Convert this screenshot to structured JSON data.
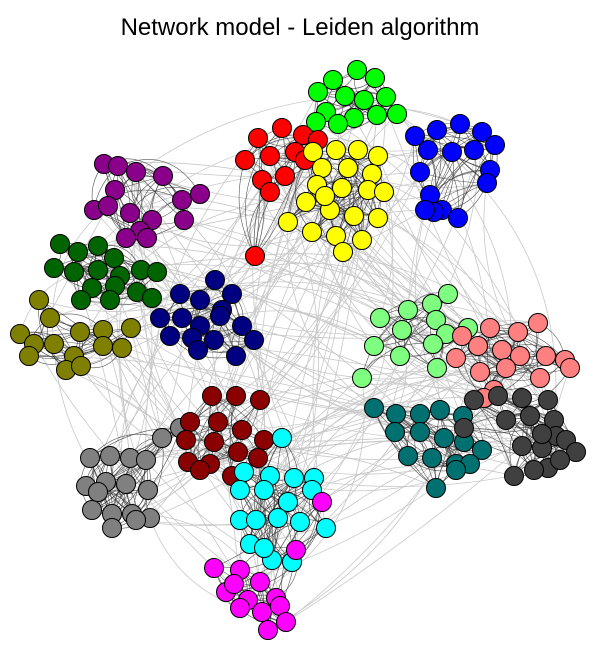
{
  "title": "Network model - Leiden algorithm",
  "chart": {
    "type": "network",
    "edge_colors": {
      "inter": "#c8c8c8",
      "intra": "#3a3a3a"
    },
    "node_stroke": "#000000",
    "communities": [
      {
        "name": "green",
        "color": "#00ff00"
      },
      {
        "name": "blue",
        "color": "#0000ff"
      },
      {
        "name": "red",
        "color": "#ff0000"
      },
      {
        "name": "yellow",
        "color": "#ffff00"
      },
      {
        "name": "purple",
        "color": "#8b008b"
      },
      {
        "name": "dark-green",
        "color": "#006400"
      },
      {
        "name": "olive",
        "color": "#808000"
      },
      {
        "name": "navy",
        "color": "#000080"
      },
      {
        "name": "light-green",
        "color": "#7fff7f"
      },
      {
        "name": "salmon",
        "color": "#ff8080"
      },
      {
        "name": "teal",
        "color": "#007070"
      },
      {
        "name": "dark-gray",
        "color": "#404040"
      },
      {
        "name": "gray",
        "color": "#808080"
      },
      {
        "name": "maroon",
        "color": "#8b0000"
      },
      {
        "name": "cyan",
        "color": "#00ffff"
      },
      {
        "name": "magenta",
        "color": "#ff00ff"
      }
    ]
  }
}
